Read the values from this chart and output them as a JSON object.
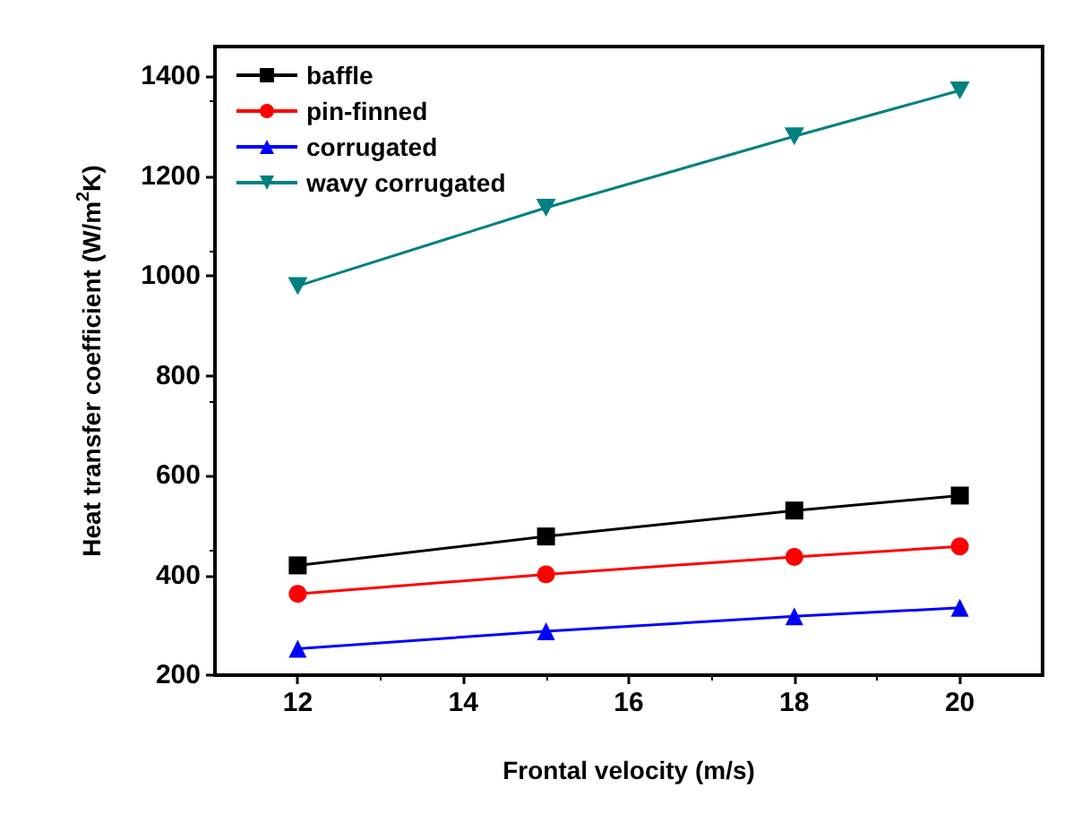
{
  "chart_data": {
    "type": "line",
    "xlabel": "Frontal velocity (m/s)",
    "ylabel": "Heat transfer coefficient (W/m$^{2}$K)",
    "x": [
      12,
      15,
      18,
      20
    ],
    "series": [
      {
        "name": "baffle",
        "color": "#000000",
        "marker": "square",
        "values": [
          420,
          478,
          530,
          560
        ]
      },
      {
        "name": "pin-finned",
        "color": "#ff0000",
        "marker": "circle",
        "values": [
          363,
          402,
          437,
          458
        ]
      },
      {
        "name": "corrugated",
        "color": "#0000ff",
        "marker": "triangle",
        "values": [
          253,
          288,
          318,
          335
        ]
      },
      {
        "name": "wavy corrugated",
        "color": "#008080",
        "marker": "triangle-down",
        "values": [
          980,
          1137,
          1280,
          1372
        ]
      }
    ],
    "xlim": [
      11,
      21
    ],
    "xticks": [
      12,
      14,
      16,
      18,
      20
    ],
    "ylim": [
      200,
      1460
    ],
    "yticks": [
      200,
      400,
      600,
      800,
      1000,
      1200,
      1400
    ],
    "legend": "top left",
    "grid": false,
    "line_style": "solid"
  }
}
